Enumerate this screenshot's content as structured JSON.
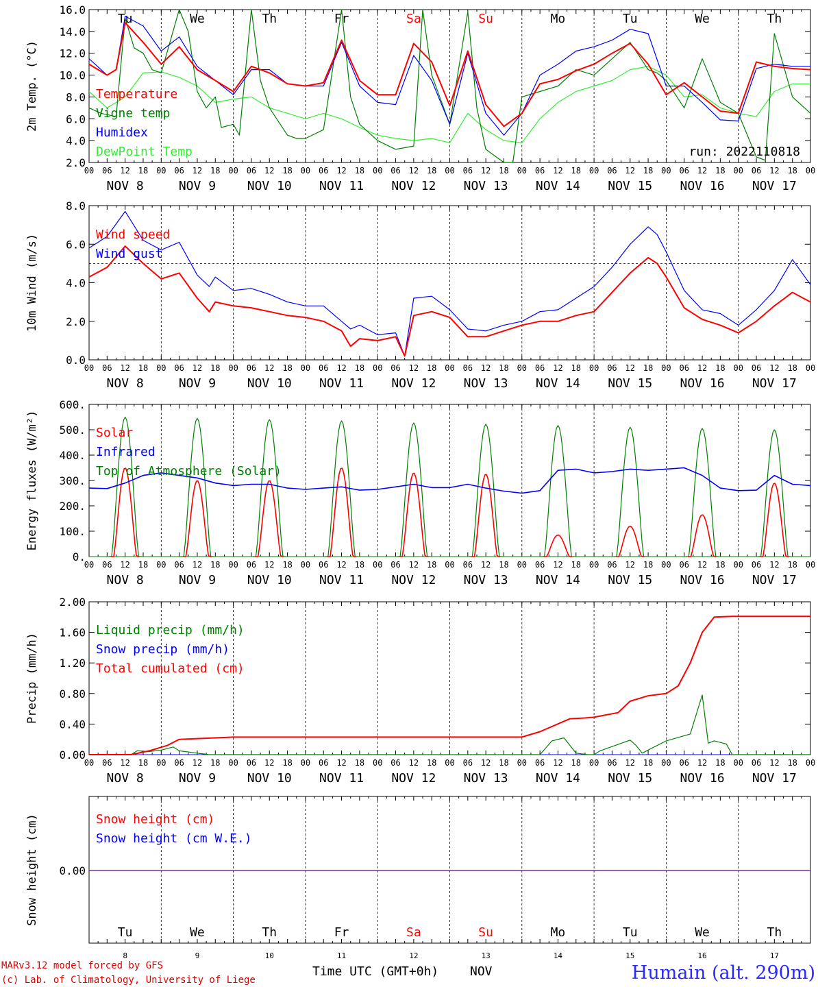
{
  "run_label": "run: 2022110818",
  "footer": {
    "model_line": "MARv3.12 model forced by GFS",
    "lab_line": "(c) Lab. of Climatology, University of Liege",
    "time_axis": "Time UTC (GMT+0h)",
    "month": "NOV",
    "station": "Humain (alt. 290m)"
  },
  "days": [
    {
      "name": "Tu",
      "date": "NOV  8",
      "num": "8",
      "weekend": false
    },
    {
      "name": "We",
      "date": "NOV  9",
      "num": "9",
      "weekend": false
    },
    {
      "name": "Th",
      "date": "NOV 10",
      "num": "10",
      "weekend": false
    },
    {
      "name": "Fr",
      "date": "NOV 11",
      "num": "11",
      "weekend": false
    },
    {
      "name": "Sa",
      "date": "NOV 12",
      "num": "12",
      "weekend": true
    },
    {
      "name": "Su",
      "date": "NOV 13",
      "num": "13",
      "weekend": true
    },
    {
      "name": "Mo",
      "date": "NOV 14",
      "num": "14",
      "weekend": false
    },
    {
      "name": "Tu",
      "date": "NOV 15",
      "num": "15",
      "weekend": false
    },
    {
      "name": "We",
      "date": "NOV 16",
      "num": "16",
      "weekend": false
    },
    {
      "name": "Th",
      "date": "NOV 17",
      "num": "17",
      "weekend": false
    }
  ],
  "hour_ticks": [
    "00",
    "06",
    "12",
    "18"
  ],
  "colors": {
    "red": "#ff0000",
    "green": "#008000",
    "blue": "#0000ff",
    "lightgreen": "#33ee33",
    "purple": "#7030a0",
    "black": "#000000"
  },
  "chart_data": [
    {
      "type": "line",
      "ylabel": "2m Temp. (°C)",
      "ylim": [
        2.0,
        16.0
      ],
      "yticks": [
        "2.0",
        "4.0",
        "6.0",
        "8.0",
        "10.0",
        "12.0",
        "14.0",
        "16.0"
      ],
      "x_unit": "hours since Nov 8 00 UTC",
      "series": [
        {
          "name": "Temperature",
          "color": "red",
          "x": [
            0,
            6,
            9,
            12,
            18,
            24,
            30,
            36,
            42,
            48,
            54,
            60,
            66,
            72,
            78,
            84,
            90,
            96,
            102,
            108,
            114,
            120,
            126,
            132,
            138,
            144,
            150,
            156,
            162,
            168,
            174,
            180,
            186,
            192,
            198,
            204,
            210,
            216,
            222,
            228,
            234,
            240
          ],
          "y": [
            11,
            10,
            10.5,
            14.8,
            13,
            11,
            12.6,
            10.5,
            9.5,
            8.5,
            10.8,
            10.2,
            9.2,
            9.0,
            9.3,
            13.2,
            9.5,
            8.2,
            8.2,
            12.9,
            11.2,
            7.2,
            12.2,
            7.3,
            5.3,
            6.5,
            9.2,
            9.6,
            10.4,
            11.0,
            12.0,
            12.9,
            11.0,
            8.2,
            9.3,
            8.0,
            6.7,
            6.5,
            11.2,
            10.8,
            10.6,
            10.5
          ]
        },
        {
          "name": "Vigne temp",
          "color": "green",
          "x": [
            0,
            4,
            9,
            12,
            15,
            18,
            21,
            24,
            30,
            33,
            36,
            39,
            42,
            44,
            48,
            50,
            54,
            57,
            60,
            66,
            69,
            72,
            78,
            84,
            87,
            90,
            96,
            102,
            108,
            111,
            114,
            120,
            126,
            129,
            132,
            138,
            141,
            144,
            150,
            156,
            162,
            168,
            174,
            180,
            186,
            189,
            192,
            198,
            204,
            210,
            216,
            222,
            225,
            228,
            234,
            240
          ],
          "y": [
            7,
            6.5,
            6.2,
            15.2,
            12.5,
            12,
            10.5,
            10.2,
            16.5,
            14,
            8.5,
            7,
            8,
            5.2,
            5.5,
            4.5,
            16.5,
            9.5,
            7,
            4.5,
            4.2,
            4.2,
            5,
            16,
            8,
            5.5,
            4,
            3.2,
            3.5,
            16,
            10,
            5.5,
            15.8,
            7,
            3.2,
            1.5,
            1.8,
            8,
            8.5,
            9,
            10.5,
            10,
            11.5,
            13,
            10.5,
            10.2,
            9.5,
            7,
            11.5,
            7.5,
            6.5,
            2.5,
            2.2,
            13.8,
            8,
            6.5
          ]
        },
        {
          "name": "Humidex",
          "color": "blue",
          "x": [
            0,
            6,
            9,
            12,
            18,
            24,
            30,
            36,
            42,
            48,
            54,
            60,
            66,
            72,
            78,
            84,
            90,
            96,
            102,
            108,
            114,
            120,
            126,
            132,
            138,
            144,
            150,
            156,
            162,
            168,
            174,
            180,
            186,
            192,
            198,
            204,
            210,
            216,
            222,
            228,
            234,
            240
          ],
          "y": [
            11.5,
            10,
            10.5,
            15.4,
            14.5,
            12.2,
            13.5,
            10.8,
            9.5,
            8.2,
            10.5,
            10.5,
            9.2,
            9.0,
            9.0,
            13.0,
            9.0,
            7.5,
            7.3,
            11.8,
            9.5,
            5.5,
            12.0,
            6.5,
            4.5,
            6.5,
            10,
            11,
            12.2,
            12.6,
            13.2,
            14.2,
            13.8,
            9.0,
            9.0,
            7.5,
            5.9,
            5.8,
            10.6,
            11.0,
            10.8,
            10.8
          ]
        },
        {
          "name": "DewPoint Temp",
          "color": "lightgreen",
          "x": [
            0,
            6,
            12,
            18,
            24,
            30,
            36,
            42,
            48,
            54,
            60,
            66,
            72,
            78,
            84,
            90,
            96,
            102,
            108,
            114,
            120,
            126,
            132,
            138,
            144,
            150,
            156,
            162,
            168,
            174,
            180,
            186,
            192,
            198,
            204,
            210,
            216,
            222,
            228,
            234,
            240
          ],
          "y": [
            8.5,
            7.0,
            8.0,
            10.2,
            10.3,
            9.8,
            9.0,
            7.5,
            7.8,
            8.0,
            7.0,
            6.5,
            6.0,
            6.5,
            6.0,
            5.2,
            4.5,
            4.2,
            4.0,
            4.2,
            3.8,
            6.5,
            5.0,
            4.0,
            3.8,
            6.0,
            7.5,
            8.5,
            9.0,
            9.5,
            10.5,
            10.8,
            10.0,
            8.0,
            8.2,
            7.0,
            6.5,
            6.2,
            8.5,
            9.2,
            9.2
          ]
        }
      ]
    },
    {
      "type": "line",
      "ylabel": "10m Wind (m/s)",
      "ylim": [
        0.0,
        8.0
      ],
      "yticks": [
        "0.0",
        "2.0",
        "4.0",
        "6.0",
        "8.0"
      ],
      "reference_line": 5.0,
      "series": [
        {
          "name": "Wind speed",
          "color": "red",
          "x": [
            0,
            6,
            12,
            18,
            24,
            30,
            36,
            40,
            42,
            48,
            54,
            60,
            66,
            72,
            78,
            84,
            87,
            90,
            96,
            102,
            105,
            108,
            114,
            120,
            126,
            132,
            138,
            144,
            150,
            156,
            162,
            168,
            174,
            180,
            186,
            189,
            192,
            198,
            204,
            210,
            216,
            222,
            228,
            234,
            240
          ],
          "y": [
            4.3,
            4.8,
            5.9,
            5.0,
            4.2,
            4.5,
            3.2,
            2.5,
            3.0,
            2.8,
            2.7,
            2.5,
            2.3,
            2.2,
            2.0,
            1.5,
            0.7,
            1.1,
            1.0,
            1.2,
            0.2,
            2.3,
            2.5,
            2.2,
            1.2,
            1.2,
            1.5,
            1.8,
            2.0,
            2.0,
            2.3,
            2.5,
            3.5,
            4.5,
            5.3,
            5.0,
            4.3,
            2.7,
            2.1,
            1.8,
            1.4,
            2.0,
            2.8,
            3.5,
            3.0
          ]
        },
        {
          "name": "Wind gust",
          "color": "blue",
          "x": [
            0,
            6,
            12,
            18,
            24,
            30,
            36,
            40,
            42,
            48,
            54,
            60,
            66,
            72,
            78,
            84,
            87,
            90,
            96,
            102,
            105,
            108,
            114,
            120,
            126,
            132,
            138,
            144,
            150,
            156,
            162,
            168,
            174,
            180,
            186,
            189,
            192,
            198,
            204,
            210,
            216,
            222,
            228,
            234,
            240
          ],
          "y": [
            5.8,
            6.4,
            7.7,
            6.2,
            5.7,
            6.1,
            4.4,
            3.8,
            4.3,
            3.6,
            3.7,
            3.4,
            3.0,
            2.8,
            2.8,
            2.0,
            1.6,
            1.8,
            1.3,
            1.4,
            0.2,
            3.2,
            3.3,
            2.6,
            1.6,
            1.5,
            1.8,
            2.0,
            2.5,
            2.6,
            3.2,
            3.8,
            4.8,
            6.0,
            6.9,
            6.5,
            5.6,
            3.6,
            2.6,
            2.4,
            1.8,
            2.6,
            3.6,
            5.2,
            3.9
          ]
        }
      ]
    },
    {
      "type": "line",
      "ylabel": "Energy fluxes (W/m²)",
      "ylim": [
        0,
        600
      ],
      "yticks": [
        "0.",
        "100.",
        "200.",
        "300.",
        "400.",
        "500.",
        "600."
      ],
      "series": [
        {
          "name": "Solar",
          "color": "red",
          "peaks": [
            {
              "day": 0,
              "v": 350
            },
            {
              "day": 1,
              "v": 300
            },
            {
              "day": 2,
              "v": 300
            },
            {
              "day": 3,
              "v": 350
            },
            {
              "day": 4,
              "v": 330
            },
            {
              "day": 5,
              "v": 325
            },
            {
              "day": 6,
              "v": 85
            },
            {
              "day": 7,
              "v": 120
            },
            {
              "day": 8,
              "v": 165
            },
            {
              "day": 9,
              "v": 290
            }
          ]
        },
        {
          "name": "Infrared",
          "color": "blue",
          "x": [
            0,
            6,
            12,
            18,
            24,
            30,
            36,
            42,
            48,
            54,
            60,
            66,
            72,
            78,
            84,
            90,
            96,
            102,
            108,
            114,
            120,
            126,
            132,
            138,
            144,
            150,
            156,
            162,
            168,
            174,
            180,
            186,
            192,
            198,
            204,
            210,
            216,
            222,
            228,
            234,
            240
          ],
          "y": [
            270,
            268,
            290,
            320,
            330,
            320,
            310,
            290,
            280,
            285,
            285,
            270,
            265,
            270,
            275,
            262,
            265,
            275,
            285,
            272,
            272,
            285,
            270,
            258,
            250,
            260,
            340,
            345,
            330,
            335,
            345,
            340,
            345,
            350,
            320,
            270,
            260,
            262,
            320,
            285,
            280
          ]
        },
        {
          "name": "Top of Atmosphere (Solar)",
          "color": "green",
          "peaks": [
            {
              "day": 0,
              "v": 550
            },
            {
              "day": 1,
              "v": 545
            },
            {
              "day": 2,
              "v": 540
            },
            {
              "day": 3,
              "v": 535
            },
            {
              "day": 4,
              "v": 527
            },
            {
              "day": 5,
              "v": 522
            },
            {
              "day": 6,
              "v": 517
            },
            {
              "day": 7,
              "v": 510
            },
            {
              "day": 8,
              "v": 505
            },
            {
              "day": 9,
              "v": 500
            }
          ]
        }
      ]
    },
    {
      "type": "line",
      "ylabel": "Precip (mm/h)",
      "ylim": [
        0,
        2.0
      ],
      "yticks": [
        "0.00",
        "0.40",
        "0.80",
        "1.20",
        "1.60",
        "2.00"
      ],
      "series": [
        {
          "name": "Liquid precip (mm/h)",
          "color": "green",
          "x": [
            0,
            14,
            16,
            20,
            24,
            28,
            30,
            36,
            38,
            40,
            150,
            154,
            158,
            162,
            166,
            168,
            170,
            180,
            182,
            184,
            192,
            200,
            204,
            206,
            208,
            212,
            214,
            220,
            228,
            240
          ],
          "y": [
            0,
            0,
            0.05,
            0.04,
            0.06,
            0.1,
            0.05,
            0.02,
            0.01,
            0,
            0,
            0.18,
            0.22,
            0.02,
            0,
            0,
            0.05,
            0.19,
            0.12,
            0.02,
            0.18,
            0.27,
            0.78,
            0.15,
            0.18,
            0.14,
            0,
            0,
            0,
            0
          ]
        },
        {
          "name": "Snow precip (mm/h)",
          "color": "blue",
          "x": [
            0,
            240
          ],
          "y": [
            0,
            0
          ]
        },
        {
          "name": "Total cumulated (cm)",
          "color": "red",
          "x": [
            0,
            14,
            20,
            26,
            30,
            36,
            42,
            48,
            72,
            96,
            120,
            144,
            150,
            160,
            165,
            168,
            176,
            180,
            186,
            192,
            196,
            200,
            204,
            208,
            214,
            220,
            228,
            240
          ],
          "y": [
            0,
            0,
            0.05,
            0.12,
            0.2,
            0.21,
            0.22,
            0.23,
            0.23,
            0.23,
            0.23,
            0.23,
            0.3,
            0.47,
            0.48,
            0.49,
            0.55,
            0.7,
            0.77,
            0.8,
            0.9,
            1.2,
            1.6,
            1.8,
            1.81,
            1.81,
            1.81,
            1.81
          ]
        }
      ]
    },
    {
      "type": "line",
      "ylabel": "Snow height (cm)",
      "ytick": "0.00",
      "series": [
        {
          "name": "Snow height (cm)",
          "color": "red",
          "x": [
            0,
            240
          ],
          "y": [
            0,
            0
          ]
        },
        {
          "name": "Snow height (cm W.E.)",
          "color": "blue",
          "x": [
            0,
            240
          ],
          "y": [
            0,
            0
          ]
        }
      ]
    }
  ]
}
